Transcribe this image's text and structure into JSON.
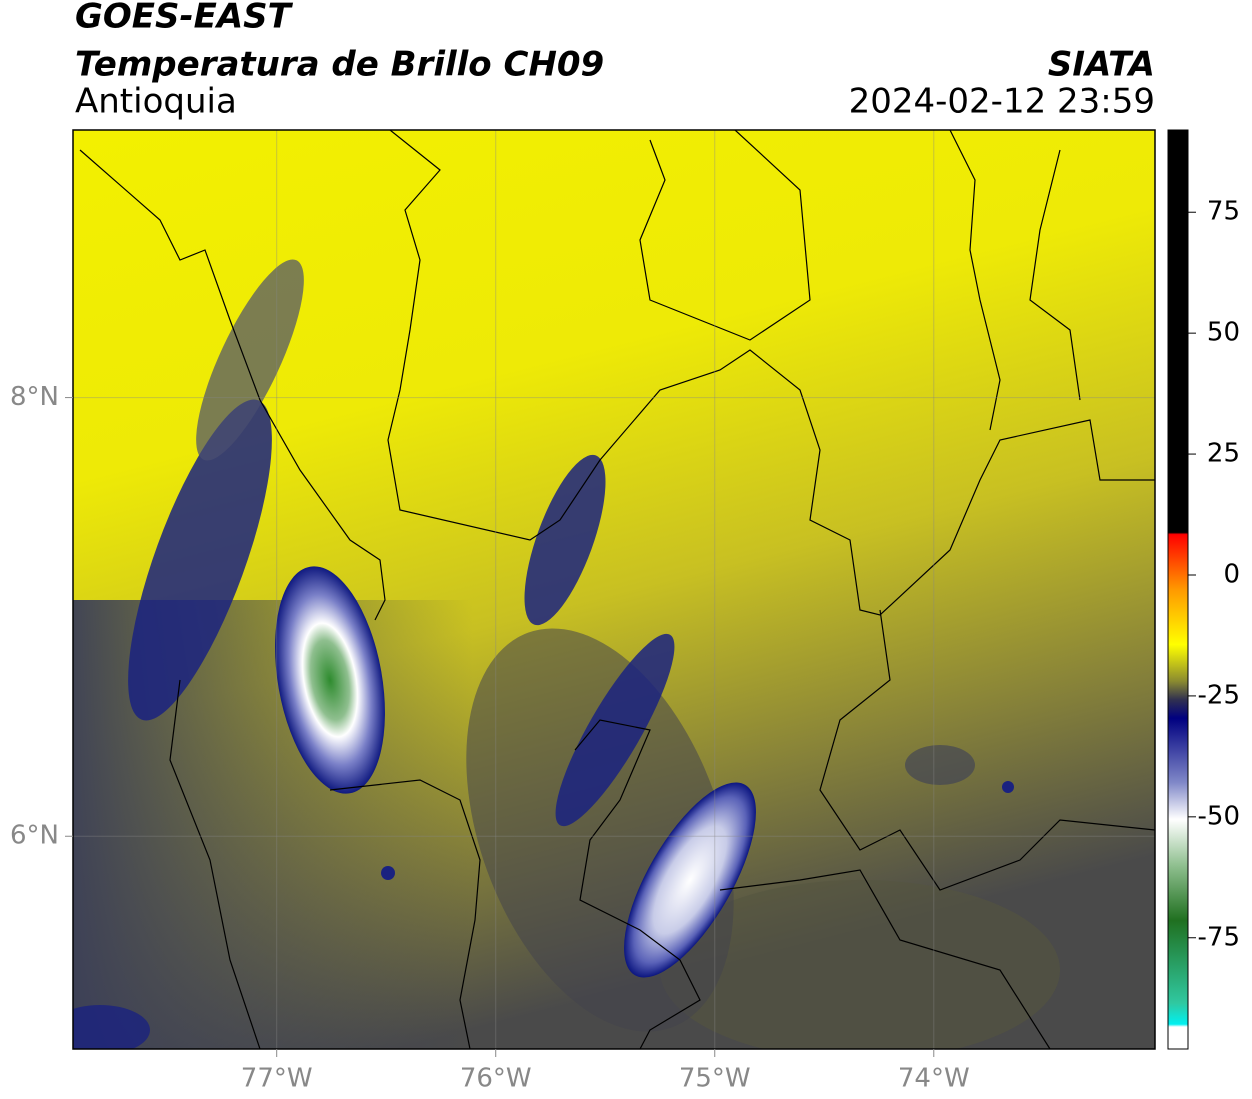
{
  "map_data": {
    "title": "GOES-EAST",
    "subtitle": "Temperatura de Brillo CH09",
    "region": "Antioquia",
    "source": "SIATA",
    "timestamp": "2024-02-12 23:59",
    "xlim": [
      -77.93,
      -72.99
    ],
    "ylim": [
      5.03,
      9.22
    ],
    "xticks": [
      {
        "value": -77,
        "label": "77°W"
      },
      {
        "value": -76,
        "label": "76°W"
      },
      {
        "value": -75,
        "label": "75°W"
      },
      {
        "value": -74,
        "label": "74°W"
      }
    ],
    "yticks": [
      {
        "value": 8,
        "label": "8°N"
      },
      {
        "value": 6,
        "label": "6°N"
      }
    ],
    "grid": true,
    "colorbar": {
      "lim": [
        -98,
        92
      ],
      "ticks": [
        75,
        50,
        25,
        0,
        -25,
        -50,
        -75
      ]
    }
  }
}
